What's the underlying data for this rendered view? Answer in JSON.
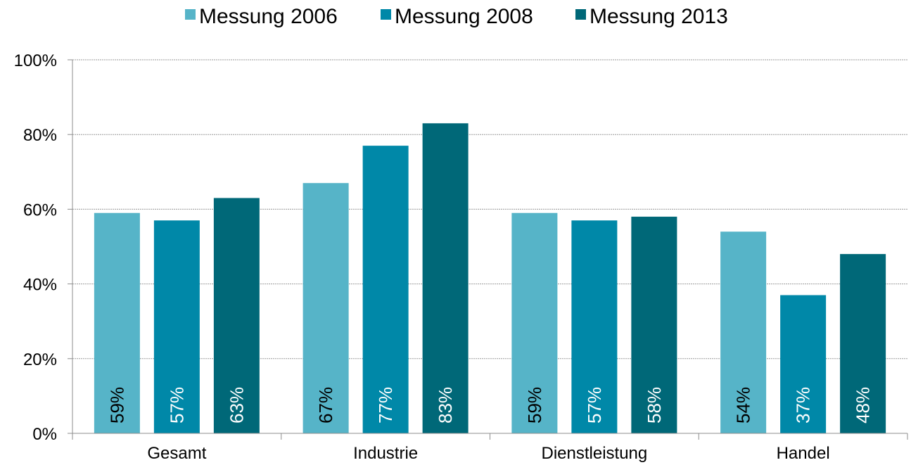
{
  "chart_data": {
    "type": "bar",
    "categories": [
      "Gesamt",
      "Industrie",
      "Dienstleistung",
      "Handel"
    ],
    "series": [
      {
        "name": "Messung 2006",
        "color": "#56b4c8",
        "label_color": "#000000",
        "values": [
          59,
          67,
          59,
          54
        ],
        "labels": [
          "59%",
          "67%",
          "59%",
          "54%"
        ]
      },
      {
        "name": "Messung 2008",
        "color": "#0088a8",
        "label_color": "#ffffff",
        "values": [
          57,
          77,
          57,
          37
        ],
        "labels": [
          "57%",
          "77%",
          "57%",
          "37%"
        ]
      },
      {
        "name": "Messung 2013",
        "color": "#006878",
        "label_color": "#ffffff",
        "values": [
          63,
          83,
          58,
          48
        ],
        "labels": [
          "63%",
          "83%",
          "58%",
          "48%"
        ]
      }
    ],
    "yticks": [
      "0%",
      "20%",
      "40%",
      "60%",
      "80%",
      "100%"
    ],
    "ylim": [
      0,
      100
    ],
    "grid": true,
    "legend_position": "top-center"
  }
}
